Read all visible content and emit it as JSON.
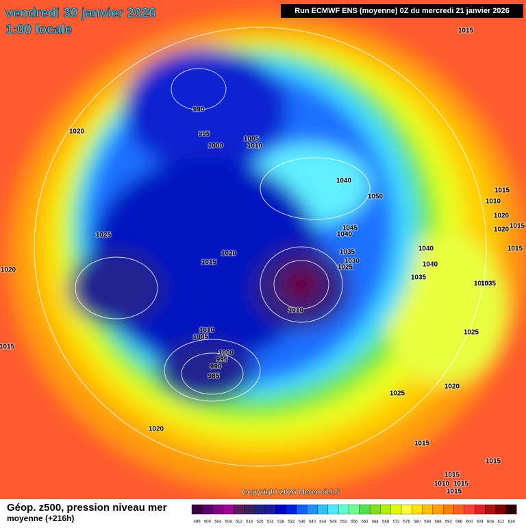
{
  "header": {
    "date": "vendredi 30 janvier 2026",
    "time": "1:00 locale",
    "run": "Run ECMWF ENS (moyenne) 0Z du mercredi 21 janvier 2026"
  },
  "isobars": [
    "1015",
    "990",
    "995",
    "1000",
    "1005",
    "1010",
    "1020",
    "1040",
    "1050",
    "1015",
    "1010",
    "1020",
    "1015",
    "1020",
    "1045",
    "1040",
    "1025",
    "1035",
    "1030",
    "1025",
    "1040",
    "1040",
    "1035",
    "1015",
    "1020",
    "1015",
    "1020",
    "1010",
    "1035",
    "1010",
    "1010",
    "1005",
    "1025",
    "1015",
    "1000",
    "995",
    "990",
    "985",
    "1025",
    "1020",
    "1020",
    "1015",
    "1015",
    "1015",
    "1010",
    "1015",
    "1015"
  ],
  "copyright": "Copyright 2026 Meteociel.fr",
  "footer": {
    "title": "Géop. z500, pression niveau mer",
    "subtitle": "moyenne  (+216h)"
  },
  "legend": {
    "labels": [
      496,
      500,
      504,
      508,
      512,
      516,
      520,
      524,
      528,
      532,
      536,
      540,
      544,
      548,
      552,
      556,
      560,
      564,
      568,
      572,
      576,
      580,
      584,
      588,
      592,
      596,
      600,
      604,
      608,
      612,
      616
    ],
    "colors": [
      "#3a0040",
      "#5a006a",
      "#800080",
      "#a0009a",
      "#5a1a5a",
      "#38205a",
      "#202080",
      "#1a1aa0",
      "#0000c8",
      "#0020e0",
      "#1060ff",
      "#2090ff",
      "#30c0ff",
      "#50e8ff",
      "#60ffd0",
      "#70ff90",
      "#50e050",
      "#80e020",
      "#b0f000",
      "#e0ff00",
      "#ffff40",
      "#ffe000",
      "#ffc000",
      "#ffa000",
      "#ff8000",
      "#ff6020",
      "#ff4030",
      "#e02020",
      "#b01010",
      "#800000",
      "#300000"
    ]
  }
}
